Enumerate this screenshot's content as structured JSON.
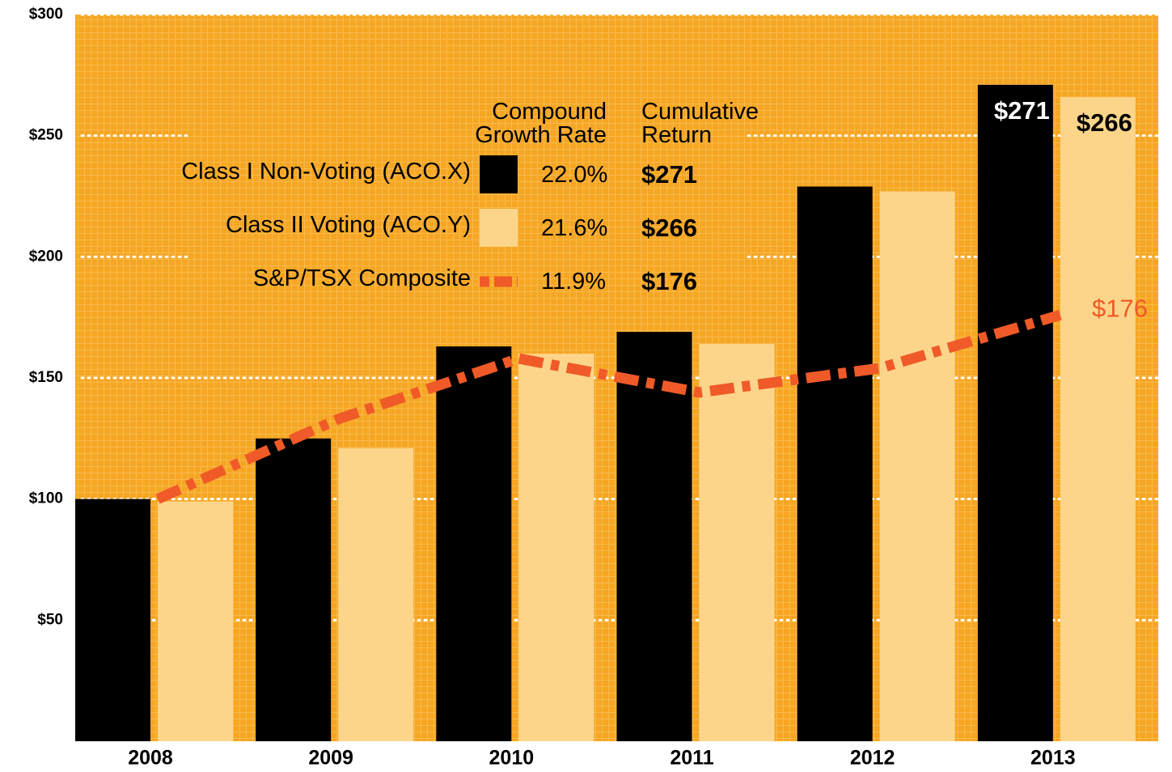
{
  "chart_data": {
    "type": "bar",
    "categories": [
      "2008",
      "2009",
      "2010",
      "2011",
      "2012",
      "2013"
    ],
    "series": [
      {
        "name": "Class I Non-Voting (ACO.X)",
        "color": "#000000",
        "values": [
          100,
          125,
          163,
          169,
          229,
          271
        ],
        "value_labels": [
          null,
          null,
          null,
          null,
          null,
          "$271"
        ],
        "growth_rate": "22.0%",
        "cumulative_return": "$271"
      },
      {
        "name": "Class II Voting (ACO.Y)",
        "color": "#fdd58a",
        "values": [
          99,
          121,
          160,
          164,
          227,
          266
        ],
        "value_labels": [
          null,
          null,
          null,
          null,
          null,
          "$266"
        ],
        "growth_rate": "21.6%",
        "cumulative_return": "$266"
      },
      {
        "name": "S&P/TSX Composite",
        "type": "line",
        "color": "#f05a28",
        "values": [
          100,
          133,
          158,
          144,
          154,
          176
        ],
        "value_labels": [
          null,
          null,
          null,
          null,
          null,
          "$176"
        ],
        "growth_rate": "11.9%",
        "cumulative_return": "$176"
      }
    ],
    "legend_headers": [
      "Compound Growth Rate",
      "Cumulative Return"
    ],
    "ylim": [
      0,
      300
    ],
    "yticks": [
      {
        "value": 50,
        "label": "$50"
      },
      {
        "value": 100,
        "label": "$100"
      },
      {
        "value": 150,
        "label": "$150"
      },
      {
        "value": 200,
        "label": "$200"
      },
      {
        "value": 250,
        "label": "$250"
      },
      {
        "value": 300,
        "label": "$300"
      }
    ],
    "grid": true,
    "background": "#f6a623"
  }
}
